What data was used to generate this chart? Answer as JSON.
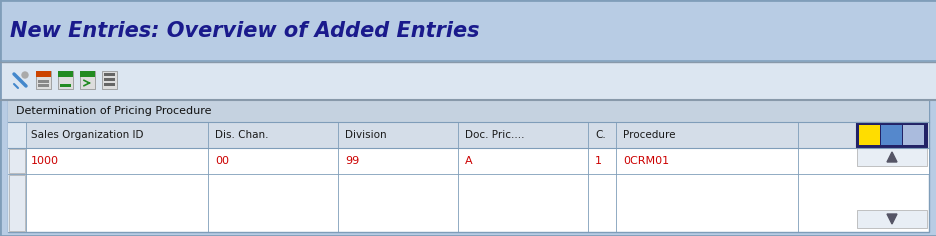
{
  "title": "New Entries: Overview of Added Entries",
  "title_color": "#1a1a8c",
  "header_bg_top": "#c8d8e8",
  "header_bg_bot": "#a8bfd4",
  "toolbar_bg": "#dce6f1",
  "section_label": "Determination of Pricing Procedure",
  "section_bg": "#c5d2e0",
  "table_header_bg": "#d4dde8",
  "table_row1_bg": "#ffffff",
  "table_empty_bg": "#f5f7fa",
  "col_headers": [
    "Sales Organization ID",
    "Dis. Chan.",
    "Division",
    "Doc. Pric....",
    "C.",
    "Procedure"
  ],
  "row_data": [
    "1000",
    "00",
    "99",
    "A",
    "1",
    "0CRM01"
  ],
  "data_color": "#cc0000",
  "border_color": "#7f9db9",
  "fig_bg": "#b8cce4",
  "outer_bg": "#dce6f1",
  "col_header_color": "#1a1a1a",
  "scrollbar_bg": "#e0e8f0"
}
